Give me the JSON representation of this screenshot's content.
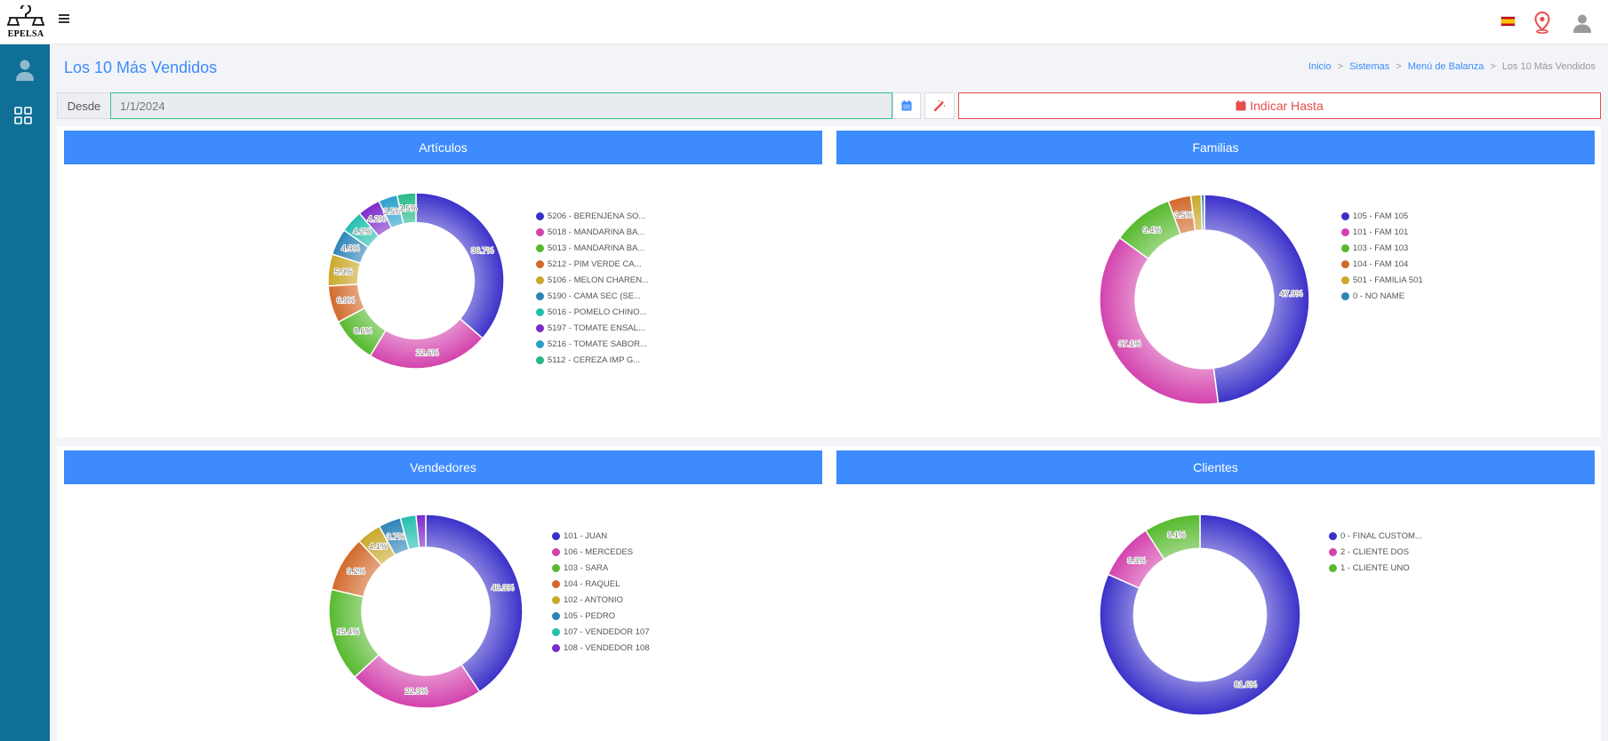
{
  "header": {
    "logo_text": "EPELSA"
  },
  "page": {
    "title": "Los 10 Más Vendidos",
    "breadcrumb": [
      "Inicio",
      "Sistemas",
      "Menú de Balanza",
      "Los 10 Más Vendidos"
    ]
  },
  "filter": {
    "desde_label": "Desde",
    "desde_value": "1/1/2024",
    "hasta_label": "Indicar Hasta"
  },
  "colors": {
    "accent": "#3d8bfd",
    "sidebar": "#0f6f97",
    "danger": "#e74c4c",
    "palette": [
      "#3a30c9",
      "#d342ad",
      "#56b92d",
      "#d2692a",
      "#c9a82a",
      "#2e84b8",
      "#23bfae",
      "#7b2ac9",
      "#2aa0c9",
      "#26b889"
    ]
  },
  "icons": {
    "menu": "hamburger-icon",
    "flag": "spain-flag-icon",
    "location": "map-pin-icon",
    "user": "user-icon",
    "dashboard": "grid-icon",
    "calendar": "calendar-icon",
    "clear": "magic-wand-icon"
  },
  "chart_data": [
    {
      "type": "pie",
      "title": "Artículos",
      "categories": [
        "5206 - BERENJENA SO...",
        "5018 - MANDARINA BA...",
        "5013 - MANDARINA BA...",
        "5212 - PIM VERDE CA...",
        "5106 - MELON CHAREN...",
        "5190 - CAMA SEC (SE...",
        "5016 - POMELO CHINO...",
        "5197 - TOMATE ENSAL...",
        "5216 - TOMATE SABOR...",
        "5112 - CEREZA IMP G..."
      ],
      "values": [
        36.7,
        22.6,
        8.6,
        6.9,
        5.9,
        4.9,
        4.2,
        4.2,
        3.5,
        3.5
      ],
      "labels": [
        "36.7%",
        "22.6%",
        "8.6%",
        "6.9%",
        "5.9%",
        "4.9%",
        "4.2%",
        "4.2%",
        "3.5%",
        "3.5%"
      ],
      "legend": "right"
    },
    {
      "type": "pie",
      "title": "Familias",
      "categories": [
        "105 - FAM 105",
        "101 - FAM 101",
        "103 - FAM 103",
        "104 - FAM 104",
        "501 - FAMILIA 501",
        "0 - NO NAME"
      ],
      "values": [
        47.9,
        37.1,
        9.4,
        3.5,
        1.6,
        0.5
      ],
      "labels": [
        "47.9%",
        "37.1%",
        "9.4%",
        "3.5%",
        "",
        ""
      ],
      "legend": "right"
    },
    {
      "type": "pie",
      "title": "Vendedores",
      "categories": [
        "101 - JUAN",
        "106 - MERCEDES",
        "103 - SARA",
        "104 - RAQUEL",
        "102 - ANTONIO",
        "105 - PEDRO",
        "107 - VENDEDOR 107",
        "108 - VENDEDOR 108"
      ],
      "values": [
        40.3,
        22.3,
        15.4,
        9.2,
        4.1,
        3.7,
        2.6,
        1.6
      ],
      "labels": [
        "40.3%",
        "22.3%",
        "15.4%",
        "9.2%",
        "4.1%",
        "3.7%",
        "",
        ""
      ],
      "legend": "right"
    },
    {
      "type": "pie",
      "title": "Clientes",
      "categories": [
        "0 - FINAL CUSTOM...",
        "2 - CLIENTE DOS",
        "1 - CLIENTE UNO"
      ],
      "values": [
        81.6,
        9.3,
        9.1
      ],
      "labels": [
        "81.6%",
        "9.3%",
        "9.1%"
      ],
      "legend": "right"
    }
  ]
}
